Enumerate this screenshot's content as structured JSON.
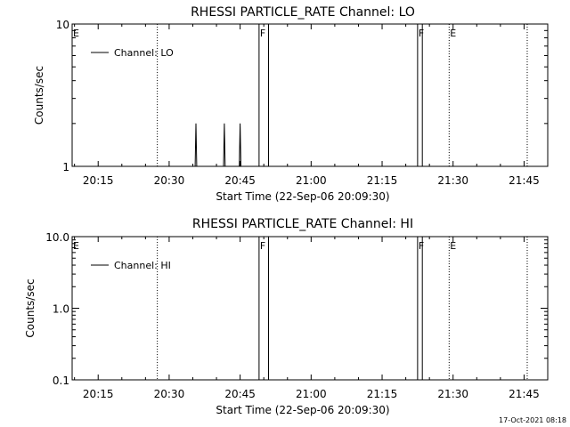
{
  "footer": {
    "timestamp": "17-Oct-2021 08:18"
  },
  "chart_data": [
    {
      "type": "line",
      "title": "RHESSI PARTICLE_RATE Channel: LO",
      "xlabel": "Start Time (22-Sep-06 20:09:30)",
      "ylabel": "Counts/sec",
      "y_scale": "log",
      "ylim": [
        1,
        10
      ],
      "xlim": [
        "20:09:30",
        "21:50:00"
      ],
      "x_ticks": [
        "20:15",
        "20:30",
        "20:45",
        "21:00",
        "21:15",
        "21:30",
        "21:45"
      ],
      "y_ticks": [
        "1",
        "10"
      ],
      "legend": {
        "position": "top-left",
        "entries": [
          "Channel: LO"
        ]
      },
      "series": [
        {
          "name": "Channel: LO",
          "x": [
            "20:35:30",
            "20:35:40",
            "20:35:50",
            "20:36:00",
            "20:41:30",
            "20:41:40",
            "20:41:50",
            "20:42:00",
            "20:44:50",
            "20:45:00",
            "20:45:10",
            "20:45:20"
          ],
          "y": [
            1,
            2,
            1,
            1,
            1,
            2,
            1,
            1,
            1,
            2,
            1,
            1
          ]
        }
      ],
      "markers": [
        {
          "label": "E",
          "x": "20:09:30",
          "style": "dotted"
        },
        {
          "label": "",
          "x": "20:27:30",
          "style": "dotted"
        },
        {
          "label": "F",
          "x": "20:49:00",
          "style": "solid"
        },
        {
          "label": "",
          "x": "20:51:00",
          "style": "solid"
        },
        {
          "label": "F",
          "x": "21:22:30",
          "style": "solid"
        },
        {
          "label": "",
          "x": "21:23:30",
          "style": "solid"
        },
        {
          "label": "E",
          "x": "21:29:10",
          "style": "dotted"
        },
        {
          "label": "",
          "x": "21:45:40",
          "style": "dotted"
        }
      ]
    },
    {
      "type": "line",
      "title": "RHESSI PARTICLE_RATE Channel: HI",
      "xlabel": "Start Time (22-Sep-06 20:09:30)",
      "ylabel": "Counts/sec",
      "y_scale": "log",
      "ylim": [
        0.1,
        10
      ],
      "xlim": [
        "20:09:30",
        "21:50:00"
      ],
      "x_ticks": [
        "20:15",
        "20:30",
        "20:45",
        "21:00",
        "21:15",
        "21:30",
        "21:45"
      ],
      "y_ticks": [
        "0.1",
        "1.0",
        "10.0"
      ],
      "legend": {
        "position": "top-left",
        "entries": [
          "Channel: HI"
        ]
      },
      "series": [
        {
          "name": "Channel: HI",
          "x": [],
          "y": []
        }
      ],
      "markers": [
        {
          "label": "E",
          "x": "20:09:30",
          "style": "dotted"
        },
        {
          "label": "",
          "x": "20:27:30",
          "style": "dotted"
        },
        {
          "label": "F",
          "x": "20:49:00",
          "style": "solid"
        },
        {
          "label": "",
          "x": "20:51:00",
          "style": "solid"
        },
        {
          "label": "F",
          "x": "21:22:30",
          "style": "solid"
        },
        {
          "label": "",
          "x": "21:23:30",
          "style": "solid"
        },
        {
          "label": "E",
          "x": "21:29:10",
          "style": "dotted"
        },
        {
          "label": "",
          "x": "21:45:40",
          "style": "dotted"
        }
      ]
    }
  ]
}
